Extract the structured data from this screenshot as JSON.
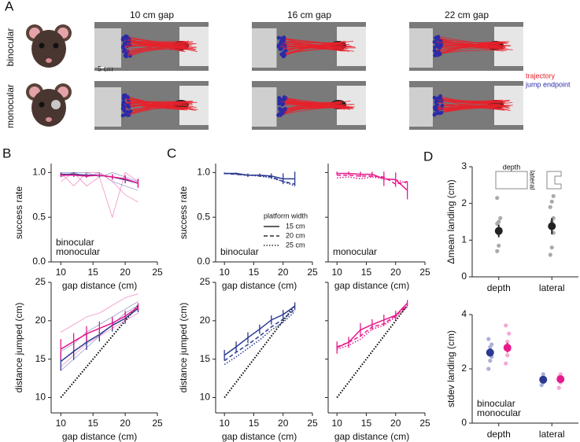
{
  "panel_a": {
    "label": "A",
    "columns": [
      "10 cm gap",
      "16 cm gap",
      "22 cm gap"
    ],
    "rows": [
      "binocular",
      "monocular"
    ],
    "scale_bar": "5 cm",
    "legend": [
      {
        "name": "trajectory",
        "color": "#e8202a"
      },
      {
        "name": "jump endpoint",
        "color": "#2b2ba8"
      }
    ]
  },
  "chart_data": [
    {
      "type": "line",
      "panel": "B",
      "xlabel": "gap distance (cm)",
      "ylabel": "success rate",
      "x": [
        10,
        12,
        14,
        16,
        18,
        20,
        22
      ],
      "xlim": [
        8.5,
        25
      ],
      "xticks": [
        10,
        15,
        20,
        25
      ],
      "ylim": [
        0,
        1.1
      ],
      "yticks": [
        {
          "value": 0,
          "label": "0.0"
        },
        {
          "value": 0.5,
          "label": "0.5"
        },
        {
          "value": 1,
          "label": "1.0"
        }
      ],
      "legend": "lower left",
      "series": [
        {
          "color": "#2b3990",
          "thin": true,
          "values": [
            1,
            1,
            0.95,
            1,
            0.9,
            0.85,
            0.8
          ]
        },
        {
          "color": "#2b3990",
          "thin": true,
          "values": [
            0.95,
            1,
            1,
            0.95,
            1,
            0.95,
            0.9
          ]
        },
        {
          "color": "#e6198c",
          "thin": true,
          "values": [
            0.9,
            1,
            0.85,
            0.95,
            0.5,
            1,
            0.9
          ]
        },
        {
          "color": "#e6198c",
          "thin": true,
          "values": [
            1,
            0.85,
            1,
            1,
            0.9,
            0.75,
            0.67
          ]
        },
        {
          "name": "binocular",
          "color": "#2b3990",
          "values": [
            0.98,
            0.98,
            0.97,
            0.97,
            0.95,
            0.92,
            0.88
          ],
          "errors": [
            0.02,
            0.02,
            0.02,
            0.02,
            0.03,
            0.04,
            0.05
          ]
        },
        {
          "name": "monocular",
          "color": "#e6198c",
          "values": [
            0.97,
            0.97,
            0.96,
            0.97,
            0.95,
            0.93,
            0.88
          ],
          "errors": [
            0.02,
            0.02,
            0.02,
            0.02,
            0.03,
            0.04,
            0.05
          ]
        }
      ]
    },
    {
      "type": "line",
      "xlabel": "gap distance (cm)",
      "ylabel": "distance jumped (cm)",
      "x": [
        10,
        12,
        14,
        16,
        18,
        20,
        22
      ],
      "xlim": [
        8.5,
        25
      ],
      "xticks": [
        10,
        15,
        20,
        25
      ],
      "ylim": [
        8,
        25
      ],
      "yticks": [
        10,
        15,
        20,
        25
      ],
      "series": [
        {
          "color": "#2b3990",
          "thin": true,
          "values": [
            13.5,
            15,
            16.5,
            18,
            19.5,
            21,
            22
          ]
        },
        {
          "color": "#2b3990",
          "thin": true,
          "values": [
            16,
            17,
            18.5,
            19.5,
            20.5,
            21.5,
            22.5
          ]
        },
        {
          "color": "#e6198c",
          "thin": true,
          "values": [
            18.5,
            19.5,
            20.5,
            21,
            22,
            23,
            23.5
          ]
        },
        {
          "color": "#e6198c",
          "thin": true,
          "values": [
            14,
            15.5,
            17,
            18,
            19,
            20,
            21
          ]
        },
        {
          "color": "#000000",
          "dash": "dotted",
          "values": [
            10,
            12,
            14,
            16,
            18,
            20,
            22
          ]
        },
        {
          "color": "#2b3990",
          "values": [
            14.7,
            16,
            17.2,
            18.2,
            19.4,
            20.3,
            21.6
          ],
          "errors": [
            1.2,
            1.1,
            1,
            0.9,
            0.8,
            0.7,
            0.5
          ]
        },
        {
          "color": "#e6198c",
          "values": [
            16.3,
            17.3,
            18.3,
            19,
            19.7,
            20.6,
            21.8
          ],
          "errors": [
            1.3,
            1.1,
            1,
            0.9,
            0.8,
            0.7,
            0.5
          ]
        }
      ]
    },
    {
      "type": "line",
      "panel": "C",
      "xlabel": "gap distance (cm)",
      "ylabel": "success rate",
      "x": [
        10,
        12,
        14,
        16,
        18,
        20,
        22
      ],
      "xlim": [
        8.5,
        25
      ],
      "xticks": [
        10,
        15,
        20,
        25
      ],
      "ylim": [
        0,
        1.1
      ],
      "yticks": [
        {
          "value": 0,
          "label": "0.0"
        },
        {
          "value": 0.5,
          "label": "0.5"
        },
        {
          "value": 1,
          "label": "1.0"
        }
      ],
      "annotation": {
        "text": "binocular",
        "color": "#2b3990"
      },
      "legend": "lower right",
      "legend_title": "platform width",
      "series": [
        {
          "name": "15 cm",
          "color": "#2b3990",
          "dash": "solid",
          "values": [
            0.99,
            0.99,
            0.97,
            0.97,
            0.96,
            0.93,
            0.93
          ],
          "errors": [
            0.01,
            0.01,
            0.02,
            0.02,
            0.03,
            0.06,
            0.08
          ]
        },
        {
          "name": "20 cm",
          "color": "#2b3990",
          "dash": "dashed",
          "values": [
            0.99,
            0.98,
            0.97,
            0.97,
            0.95,
            0.9,
            0.87
          ]
        },
        {
          "name": "25 cm",
          "color": "#2b3990",
          "dash": "dotted",
          "values": [
            0.99,
            0.98,
            0.97,
            0.96,
            0.94,
            0.9,
            0.85
          ]
        }
      ]
    },
    {
      "type": "line",
      "xlabel": "gap distance (cm)",
      "x": [
        10,
        12,
        14,
        16,
        18,
        20,
        22
      ],
      "xlim": [
        8.5,
        25
      ],
      "xticks": [
        10,
        15,
        20,
        25
      ],
      "ylim": [
        0,
        1.1
      ],
      "yticks": [
        0,
        0.5,
        1
      ],
      "ytick_labels": false,
      "annotation": {
        "text": "monocular",
        "color": "#e6198c"
      },
      "series": [
        {
          "color": "#e6198c",
          "dash": "solid",
          "values": [
            0.99,
            0.99,
            0.98,
            0.98,
            0.93,
            0.92,
            0.8
          ],
          "errors": [
            0.02,
            0.02,
            0.03,
            0.03,
            0.08,
            0.08,
            0.1
          ]
        },
        {
          "color": "#e6198c",
          "dash": "dashed",
          "values": [
            0.97,
            0.97,
            0.96,
            0.96,
            0.95,
            0.87,
            0.9
          ]
        },
        {
          "color": "#e6198c",
          "dash": "dotted",
          "values": [
            0.94,
            0.95,
            0.93,
            0.95,
            0.93,
            0.92,
            0.88
          ]
        }
      ]
    },
    {
      "type": "line",
      "xlabel": "gap distance (cm)",
      "ylabel": "distance jumped (cm)",
      "x": [
        10,
        12,
        14,
        16,
        18,
        20,
        22
      ],
      "xlim": [
        8.5,
        25
      ],
      "xticks": [
        10,
        15,
        20,
        25
      ],
      "ylim": [
        8,
        25
      ],
      "yticks": [
        10,
        15,
        20,
        25
      ],
      "series": [
        {
          "color": "#000000",
          "dash": "dotted",
          "values": [
            10,
            12,
            14,
            16,
            18,
            20,
            22
          ]
        },
        {
          "color": "#2b3990",
          "dash": "solid",
          "values": [
            15.5,
            16.6,
            17.8,
            18.9,
            20.1,
            20.8,
            21.9
          ],
          "errors": [
            0.7,
            0.7,
            0.7,
            0.6,
            0.6,
            0.6,
            0.5
          ]
        },
        {
          "color": "#2b3990",
          "dash": "dashed",
          "values": [
            14.8,
            15.9,
            16.9,
            18,
            19.2,
            20.2,
            21.5
          ]
        },
        {
          "color": "#2b3990",
          "dash": "dotted",
          "values": [
            14.3,
            15.3,
            16.4,
            17.5,
            18.8,
            19.8,
            21.2
          ]
        }
      ]
    },
    {
      "type": "line",
      "xlabel": "gap distance (cm)",
      "x": [
        10,
        12,
        14,
        16,
        18,
        20,
        22
      ],
      "xlim": [
        8.5,
        25
      ],
      "xticks": [
        10,
        15,
        20,
        25
      ],
      "ylim": [
        8,
        25
      ],
      "yticks": [
        10,
        15,
        20,
        25
      ],
      "ytick_labels": false,
      "series": [
        {
          "color": "#000000",
          "dash": "dotted",
          "values": [
            10,
            12,
            14,
            16,
            18,
            20,
            22
          ]
        },
        {
          "color": "#e6198c",
          "dash": "solid",
          "values": [
            16.5,
            17.2,
            18.8,
            19.5,
            20.1,
            20.7,
            22.3
          ],
          "errors": [
            0.8,
            0.7,
            0.9,
            0.7,
            0.7,
            0.6,
            0.4
          ]
        },
        {
          "color": "#e6198c",
          "dash": "dashed",
          "values": [
            16.6,
            17.2,
            18,
            19.2,
            19.6,
            20.7,
            22
          ]
        },
        {
          "color": "#e6198c",
          "dash": "dotted",
          "values": [
            16.3,
            16.8,
            17.6,
            18.9,
            19.4,
            20.5,
            21.8
          ]
        }
      ]
    },
    {
      "type": "dot",
      "panel": "D",
      "categories": [
        "depth",
        "lateral"
      ],
      "ylabel": "Δmean landing (cm)",
      "ylim": [
        0,
        3
      ],
      "yticks": [
        0,
        1,
        2,
        3
      ],
      "icon_labels": [
        "depth",
        "lateral"
      ],
      "series": [
        {
          "color": "#222222",
          "point_color": "#aaaaaa",
          "values": [
            1.25,
            1.38
          ],
          "errors": [
            0.17,
            0.22
          ],
          "points": [
            [
              0.7,
              0.85,
              1.3,
              1.45,
              1.5,
              1.6,
              2.15
            ],
            [
              0.6,
              0.8,
              1.2,
              1.35,
              1.5,
              1.6,
              1.9,
              2.05,
              2.2
            ]
          ]
        }
      ]
    },
    {
      "type": "dot",
      "categories": [
        "depth",
        "lateral"
      ],
      "ylabel": "stdev landing (cm)",
      "ylim": [
        0,
        4
      ],
      "yticks": [
        0,
        2,
        4
      ],
      "legend": "lower left",
      "series": [
        {
          "name": "binocular",
          "color": "#2b3990",
          "point_color": "#aab0d8",
          "values": [
            2.6,
            1.6
          ],
          "errors": [
            0.15,
            0.1
          ],
          "points": [
            [
              2,
              2.3,
              2.45,
              2.6,
              2.8,
              2.9,
              3.1
            ],
            [
              1.4,
              1.5,
              1.6,
              1.65,
              1.8
            ]
          ]
        },
        {
          "name": "monocular",
          "color": "#e6198c",
          "point_color": "#f4a8d4",
          "values": [
            2.78,
            1.62
          ],
          "errors": [
            0.18,
            0.1
          ],
          "points": [
            [
              2.2,
              2.5,
              2.7,
              2.8,
              3,
              3.3,
              3.6
            ],
            [
              1.3,
              1.5,
              1.6,
              1.7,
              1.8
            ]
          ]
        }
      ]
    }
  ]
}
